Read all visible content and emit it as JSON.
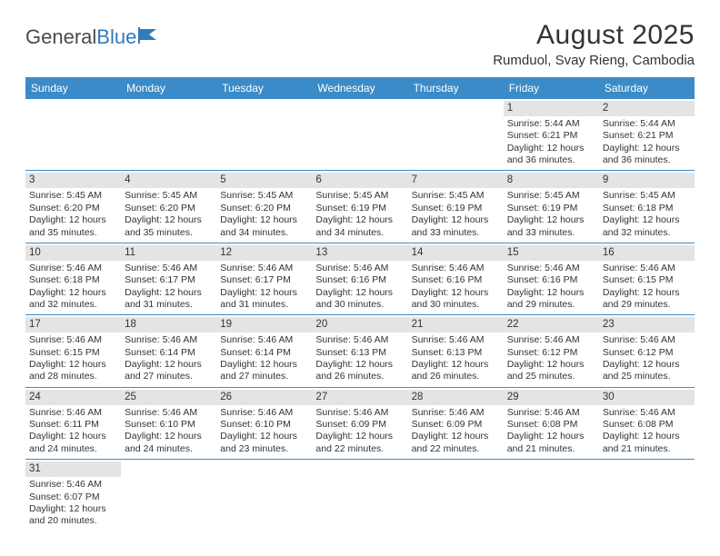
{
  "logo": {
    "text1": "General",
    "text2": "Blue"
  },
  "title": "August 2025",
  "location": "Rumduol, Svay Rieng, Cambodia",
  "colors": {
    "header_bg": "#3b8bc9",
    "header_text": "#ffffff",
    "daynum_bg": "#e4e4e4",
    "week_border": "#3b8bc9",
    "text": "#333333",
    "logo_gray": "#4a4a4a",
    "logo_blue": "#2f7bbf"
  },
  "day_names": [
    "Sunday",
    "Monday",
    "Tuesday",
    "Wednesday",
    "Thursday",
    "Friday",
    "Saturday"
  ],
  "weeks": [
    [
      null,
      null,
      null,
      null,
      null,
      {
        "n": "1",
        "sunrise": "5:44 AM",
        "sunset": "6:21 PM",
        "daylight": "12 hours and 36 minutes."
      },
      {
        "n": "2",
        "sunrise": "5:44 AM",
        "sunset": "6:21 PM",
        "daylight": "12 hours and 36 minutes."
      }
    ],
    [
      {
        "n": "3",
        "sunrise": "5:45 AM",
        "sunset": "6:20 PM",
        "daylight": "12 hours and 35 minutes."
      },
      {
        "n": "4",
        "sunrise": "5:45 AM",
        "sunset": "6:20 PM",
        "daylight": "12 hours and 35 minutes."
      },
      {
        "n": "5",
        "sunrise": "5:45 AM",
        "sunset": "6:20 PM",
        "daylight": "12 hours and 34 minutes."
      },
      {
        "n": "6",
        "sunrise": "5:45 AM",
        "sunset": "6:19 PM",
        "daylight": "12 hours and 34 minutes."
      },
      {
        "n": "7",
        "sunrise": "5:45 AM",
        "sunset": "6:19 PM",
        "daylight": "12 hours and 33 minutes."
      },
      {
        "n": "8",
        "sunrise": "5:45 AM",
        "sunset": "6:19 PM",
        "daylight": "12 hours and 33 minutes."
      },
      {
        "n": "9",
        "sunrise": "5:45 AM",
        "sunset": "6:18 PM",
        "daylight": "12 hours and 32 minutes."
      }
    ],
    [
      {
        "n": "10",
        "sunrise": "5:46 AM",
        "sunset": "6:18 PM",
        "daylight": "12 hours and 32 minutes."
      },
      {
        "n": "11",
        "sunrise": "5:46 AM",
        "sunset": "6:17 PM",
        "daylight": "12 hours and 31 minutes."
      },
      {
        "n": "12",
        "sunrise": "5:46 AM",
        "sunset": "6:17 PM",
        "daylight": "12 hours and 31 minutes."
      },
      {
        "n": "13",
        "sunrise": "5:46 AM",
        "sunset": "6:16 PM",
        "daylight": "12 hours and 30 minutes."
      },
      {
        "n": "14",
        "sunrise": "5:46 AM",
        "sunset": "6:16 PM",
        "daylight": "12 hours and 30 minutes."
      },
      {
        "n": "15",
        "sunrise": "5:46 AM",
        "sunset": "6:16 PM",
        "daylight": "12 hours and 29 minutes."
      },
      {
        "n": "16",
        "sunrise": "5:46 AM",
        "sunset": "6:15 PM",
        "daylight": "12 hours and 29 minutes."
      }
    ],
    [
      {
        "n": "17",
        "sunrise": "5:46 AM",
        "sunset": "6:15 PM",
        "daylight": "12 hours and 28 minutes."
      },
      {
        "n": "18",
        "sunrise": "5:46 AM",
        "sunset": "6:14 PM",
        "daylight": "12 hours and 27 minutes."
      },
      {
        "n": "19",
        "sunrise": "5:46 AM",
        "sunset": "6:14 PM",
        "daylight": "12 hours and 27 minutes."
      },
      {
        "n": "20",
        "sunrise": "5:46 AM",
        "sunset": "6:13 PM",
        "daylight": "12 hours and 26 minutes."
      },
      {
        "n": "21",
        "sunrise": "5:46 AM",
        "sunset": "6:13 PM",
        "daylight": "12 hours and 26 minutes."
      },
      {
        "n": "22",
        "sunrise": "5:46 AM",
        "sunset": "6:12 PM",
        "daylight": "12 hours and 25 minutes."
      },
      {
        "n": "23",
        "sunrise": "5:46 AM",
        "sunset": "6:12 PM",
        "daylight": "12 hours and 25 minutes."
      }
    ],
    [
      {
        "n": "24",
        "sunrise": "5:46 AM",
        "sunset": "6:11 PM",
        "daylight": "12 hours and 24 minutes."
      },
      {
        "n": "25",
        "sunrise": "5:46 AM",
        "sunset": "6:10 PM",
        "daylight": "12 hours and 24 minutes."
      },
      {
        "n": "26",
        "sunrise": "5:46 AM",
        "sunset": "6:10 PM",
        "daylight": "12 hours and 23 minutes."
      },
      {
        "n": "27",
        "sunrise": "5:46 AM",
        "sunset": "6:09 PM",
        "daylight": "12 hours and 22 minutes."
      },
      {
        "n": "28",
        "sunrise": "5:46 AM",
        "sunset": "6:09 PM",
        "daylight": "12 hours and 22 minutes."
      },
      {
        "n": "29",
        "sunrise": "5:46 AM",
        "sunset": "6:08 PM",
        "daylight": "12 hours and 21 minutes."
      },
      {
        "n": "30",
        "sunrise": "5:46 AM",
        "sunset": "6:08 PM",
        "daylight": "12 hours and 21 minutes."
      }
    ],
    [
      {
        "n": "31",
        "sunrise": "5:46 AM",
        "sunset": "6:07 PM",
        "daylight": "12 hours and 20 minutes."
      },
      null,
      null,
      null,
      null,
      null,
      null
    ]
  ],
  "labels": {
    "sunrise": "Sunrise:",
    "sunset": "Sunset:",
    "daylight": "Daylight:"
  }
}
